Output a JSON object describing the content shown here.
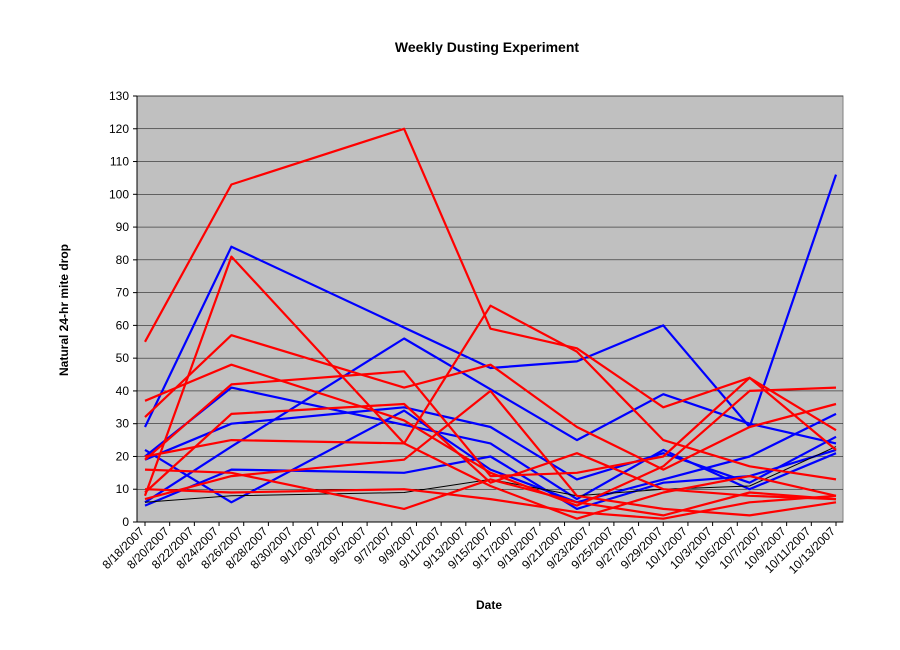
{
  "chart_data": {
    "type": "line",
    "title": "Weekly Dusting Experiment",
    "xlabel": "Date",
    "ylabel": "Natural 24-hr mite drop",
    "ylim": [
      0,
      130
    ],
    "yticks": [
      0,
      10,
      20,
      30,
      40,
      50,
      60,
      70,
      80,
      90,
      100,
      110,
      120,
      130
    ],
    "x_tick_labels": [
      "8/18/2007",
      "8/20/2007",
      "8/22/2007",
      "8/24/2007",
      "8/26/2007",
      "8/28/2007",
      "8/30/2007",
      "9/1/2007",
      "9/3/2007",
      "9/5/2007",
      "9/7/2007",
      "9/9/2007",
      "9/11/2007",
      "9/13/2007",
      "9/15/2007",
      "9/17/2007",
      "9/19/2007",
      "9/21/2007",
      "9/23/2007",
      "9/25/2007",
      "9/27/2007",
      "9/29/2007",
      "10/1/2007",
      "10/3/2007",
      "10/5/2007",
      "10/7/2007",
      "10/9/2007",
      "10/11/2007",
      "10/13/2007"
    ],
    "x": [
      "8/18/2007",
      "8/25/2007",
      "9/8/2007",
      "9/15/2007",
      "9/22/2007",
      "9/29/2007",
      "10/6/2007",
      "10/13/2007"
    ],
    "grid": true,
    "legend": "none",
    "colors": {
      "plot_bg": "#c0c0c0",
      "blue": "#0000ff",
      "red": "#ff0000",
      "black": "#000000",
      "grid": "#000000"
    },
    "series": [
      {
        "color": "#0000ff",
        "values": [
          29,
          84,
          null,
          47,
          49,
          60,
          29,
          106
        ]
      },
      {
        "color": "#0000ff",
        "values": [
          20,
          41,
          null,
          24,
          7,
          22,
          10,
          21
        ]
      },
      {
        "color": "#0000ff",
        "values": [
          6,
          23,
          56,
          null,
          25,
          39,
          30,
          24
        ]
      },
      {
        "color": "#0000ff",
        "values": [
          19,
          30,
          35,
          29,
          13,
          21,
          12,
          26
        ]
      },
      {
        "color": "#0000ff",
        "values": [
          22,
          6,
          34,
          16,
          6,
          13,
          20,
          33
        ]
      },
      {
        "color": "#0000ff",
        "values": [
          5,
          16,
          15,
          20,
          4,
          12,
          14,
          22
        ]
      },
      {
        "color": "#000000",
        "values": [
          6,
          8,
          9,
          13,
          8,
          10,
          11,
          23
        ]
      },
      {
        "color": "#ff0000",
        "values": [
          55,
          103,
          120,
          59,
          53,
          35,
          44,
          22
        ]
      },
      {
        "color": "#ff0000",
        "values": [
          37,
          48,
          31,
          15,
          5,
          17,
          40,
          41
        ]
      },
      {
        "color": "#ff0000",
        "values": [
          32,
          57,
          41,
          48,
          29,
          16,
          29,
          36
        ]
      },
      {
        "color": "#ff0000",
        "values": [
          8,
          81,
          24,
          66,
          52,
          25,
          17,
          13
        ]
      },
      {
        "color": "#ff0000",
        "values": [
          19,
          42,
          46,
          14,
          15,
          20,
          44,
          28
        ]
      },
      {
        "color": "#ff0000",
        "values": [
          9,
          33,
          36,
          12,
          21,
          10,
          8,
          7
        ]
      },
      {
        "color": "#ff0000",
        "values": [
          20,
          25,
          24,
          11,
          1,
          9,
          14,
          8
        ]
      },
      {
        "color": "#ff0000",
        "values": [
          7,
          14,
          19,
          40,
          8,
          4,
          2,
          6
        ]
      },
      {
        "color": "#ff0000",
        "values": [
          16,
          15,
          4,
          13,
          6,
          2,
          9,
          7
        ]
      },
      {
        "color": "#ff0000",
        "values": [
          10,
          9,
          10,
          7,
          3,
          1,
          6,
          8
        ]
      }
    ]
  }
}
